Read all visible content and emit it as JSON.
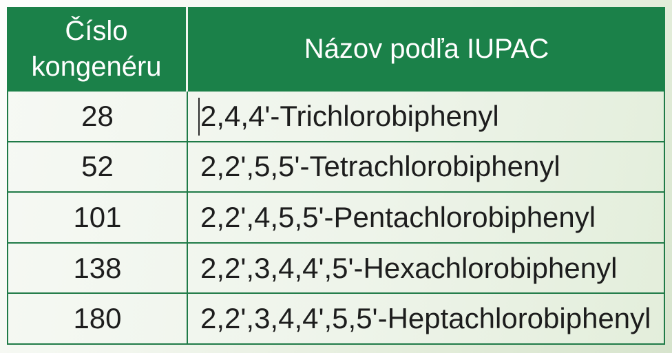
{
  "table": {
    "header": {
      "col1": "Číslo kongenéru",
      "col2": "Názov podľa IUPAC"
    },
    "rows": [
      {
        "number": "28",
        "name": "2,4,4'-Trichlorobiphenyl"
      },
      {
        "number": "52",
        "name": "2,2',5,5'-Tetrachlorobiphenyl"
      },
      {
        "number": "101",
        "name": "2,2',4,5,5'-Pentachlorobiphenyl"
      },
      {
        "number": "138",
        "name": "2,2',3,4,4',5'-Hexachlorobiphenyl"
      },
      {
        "number": "180",
        "name": "2,2',3,4,4',5,5'-Heptachlorobiphenyl"
      }
    ]
  },
  "colors": {
    "header_bg": "#1b8149",
    "header_text": "#ffffff",
    "border_green": "#1f7a47",
    "body_text": "#1d1d1d",
    "header_divider": "#f2f7f1"
  }
}
